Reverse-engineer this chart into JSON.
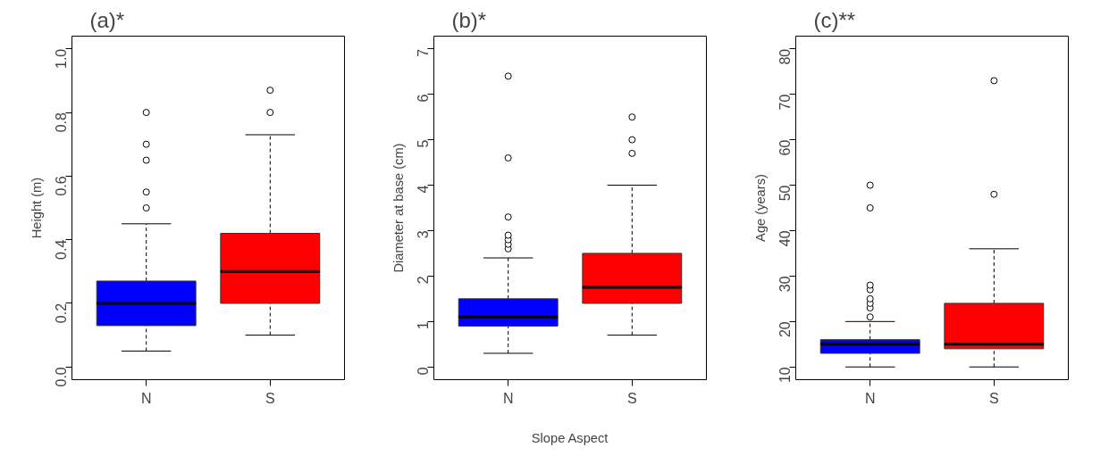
{
  "chart_data": [
    {
      "type": "box",
      "title": "(a)*",
      "ylabel": "Height (m)",
      "categories": [
        "N",
        "S"
      ],
      "colors": [
        "#0000ff",
        "#ff0000"
      ],
      "ylim": [
        -0.04,
        1.04
      ],
      "yticks": [
        {
          "value": 0,
          "label": "0.0"
        },
        0.2,
        0.4,
        0.6,
        0.8,
        {
          "value": 1,
          "label": "1.0"
        }
      ],
      "grid": false,
      "boxes": [
        {
          "low": 0.05,
          "q1": 0.13,
          "median": 0.2,
          "q3": 0.27,
          "high": 0.45,
          "outliers": [
            0.5,
            0.55,
            0.65,
            0.7,
            0.8
          ]
        },
        {
          "low": 0.1,
          "q1": 0.2,
          "median": 0.3,
          "q3": 0.42,
          "high": 0.73,
          "outliers": [
            0.8,
            0.87
          ]
        }
      ]
    },
    {
      "type": "box",
      "title": "(b)*",
      "xlabel": "Slope Aspect",
      "ylabel": "Diameter at base (cm)",
      "categories": [
        "N",
        "S"
      ],
      "colors": [
        "#0000ff",
        "#ff0000"
      ],
      "ylim": [
        -0.28,
        7.28
      ],
      "yticks": [
        0,
        1,
        2,
        3,
        4,
        5,
        6,
        7
      ],
      "grid": false,
      "boxes": [
        {
          "low": 0.3,
          "q1": 0.9,
          "median": 1.1,
          "q3": 1.5,
          "high": 2.4,
          "outliers": [
            2.6,
            2.7,
            2.8,
            2.9,
            3.3,
            4.6,
            6.4
          ]
        },
        {
          "low": 0.7,
          "q1": 1.4,
          "median": 1.75,
          "q3": 2.5,
          "high": 4.0,
          "outliers": [
            4.7,
            5.0,
            5.5
          ]
        }
      ]
    },
    {
      "type": "box",
      "title": "(c)**",
      "ylabel": "Age (years)",
      "categories": [
        "N",
        "S"
      ],
      "colors": [
        "#0000ff",
        "#ff0000"
      ],
      "ylim": [
        7.2,
        82.8
      ],
      "yticks": [
        10,
        20,
        30,
        40,
        50,
        60,
        70,
        80
      ],
      "grid": false,
      "boxes": [
        {
          "low": 10,
          "q1": 13,
          "median": 15,
          "q3": 16,
          "high": 20,
          "outliers": [
            21,
            23,
            24,
            25,
            27,
            28,
            45,
            50
          ]
        },
        {
          "low": 10,
          "q1": 14,
          "median": 15,
          "q3": 24,
          "high": 36,
          "outliers": [
            48,
            73
          ]
        }
      ]
    }
  ]
}
